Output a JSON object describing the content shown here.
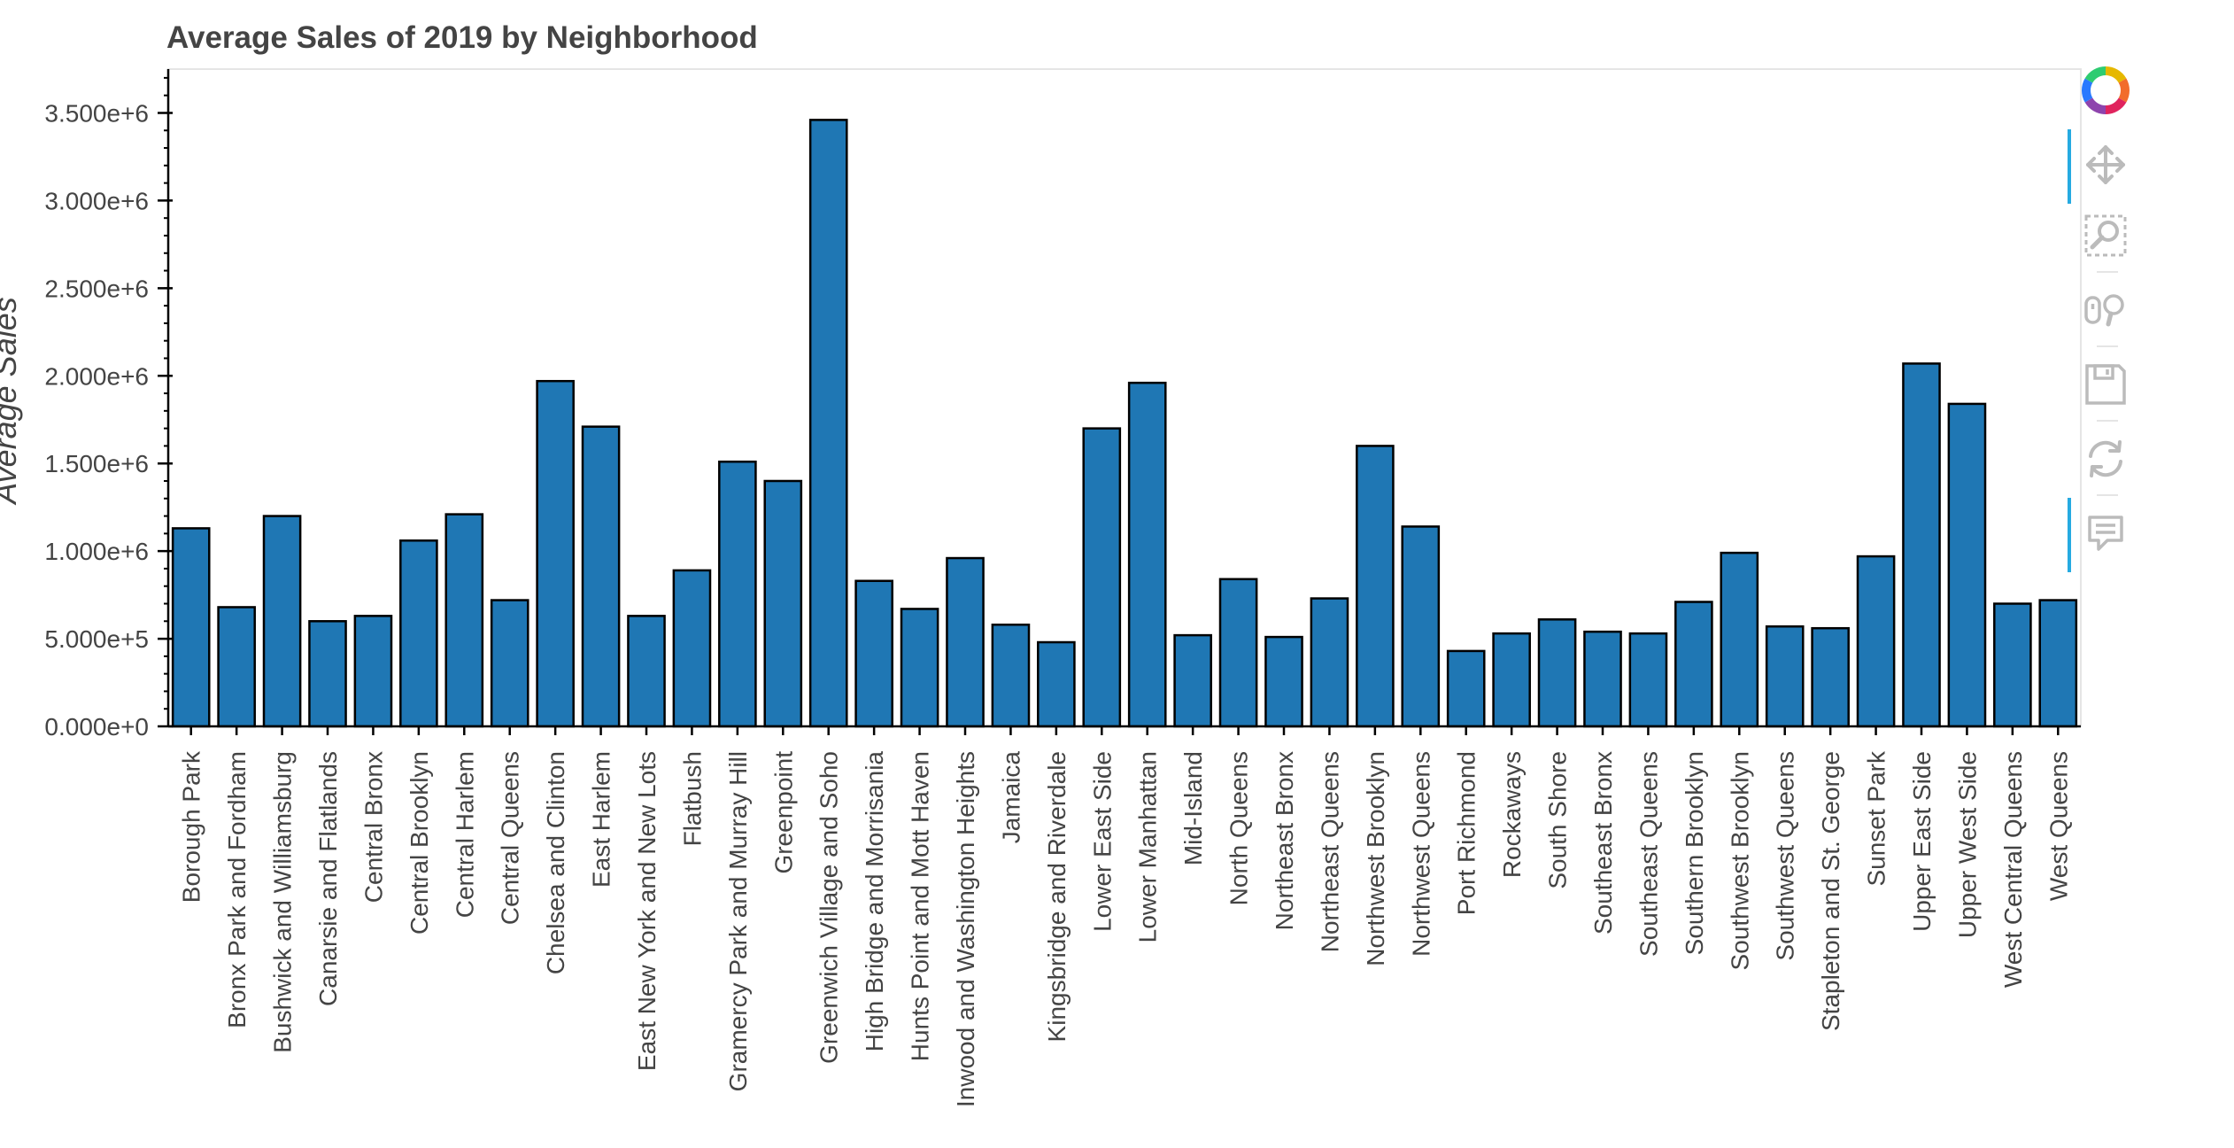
{
  "toolbar": {
    "tools": [
      {
        "name": "bokeh-logo-icon",
        "active": false
      },
      {
        "name": "pan-icon",
        "active": true
      },
      {
        "name": "box-zoom-icon",
        "active": false
      },
      {
        "name": "wheel-zoom-icon",
        "active": false
      },
      {
        "name": "save-icon",
        "active": false
      },
      {
        "name": "reset-icon",
        "active": false
      },
      {
        "name": "hover-icon",
        "active": true
      }
    ],
    "accent_color": "#26aae1",
    "icon_color": "#bbbbbb"
  },
  "chart_data": {
    "type": "bar",
    "title": "Average Sales of 2019 by Neighborhood",
    "ylabel": "Average Sales",
    "xlabel": "",
    "ylim": [
      0,
      3750000
    ],
    "yticks": [
      0,
      500000,
      1000000,
      1500000,
      2000000,
      2500000,
      3000000,
      3500000
    ],
    "ytick_labels": [
      "0.000e+0",
      "5.000e+5",
      "1.000e+6",
      "1.500e+6",
      "2.000e+6",
      "2.500e+6",
      "3.000e+6",
      "3.500e+6"
    ],
    "bar_color": "#1f77b4",
    "bar_outline": "#000000",
    "grid": false,
    "categories": [
      "Borough Park",
      "Bronx Park and Fordham",
      "Bushwick and Williamsburg",
      "Canarsie and Flatlands",
      "Central Bronx",
      "Central Brooklyn",
      "Central Harlem",
      "Central Queens",
      "Chelsea and Clinton",
      "East Harlem",
      "East New York and New Lots",
      "Flatbush",
      "Gramercy Park and Murray Hill",
      "Greenpoint",
      "Greenwich Village and Soho",
      "High Bridge and Morrisania",
      "Hunts Point and Mott Haven",
      "Inwood and Washington Heights",
      "Jamaica",
      "Kingsbridge and Riverdale",
      "Lower East Side",
      "Lower Manhattan",
      "Mid-Island",
      "North Queens",
      "Northeast Bronx",
      "Northeast Queens",
      "Northwest Brooklyn",
      "Northwest Queens",
      "Port Richmond",
      "Rockaways",
      "South Shore",
      "Southeast Bronx",
      "Southeast Queens",
      "Southern Brooklyn",
      "Southwest Brooklyn",
      "Southwest Queens",
      "Stapleton and St. George",
      "Sunset Park",
      "Upper East Side",
      "Upper West Side",
      "West Central Queens",
      "West Queens"
    ],
    "values": [
      1130000,
      680000,
      1200000,
      600000,
      630000,
      1060000,
      1210000,
      720000,
      1970000,
      1710000,
      630000,
      890000,
      1510000,
      1400000,
      3460000,
      830000,
      670000,
      960000,
      580000,
      480000,
      1700000,
      1960000,
      520000,
      840000,
      510000,
      730000,
      1600000,
      1140000,
      430000,
      530000,
      610000,
      540000,
      530000,
      710000,
      990000,
      570000,
      560000,
      970000,
      2070000,
      1840000,
      700000,
      720000
    ]
  }
}
